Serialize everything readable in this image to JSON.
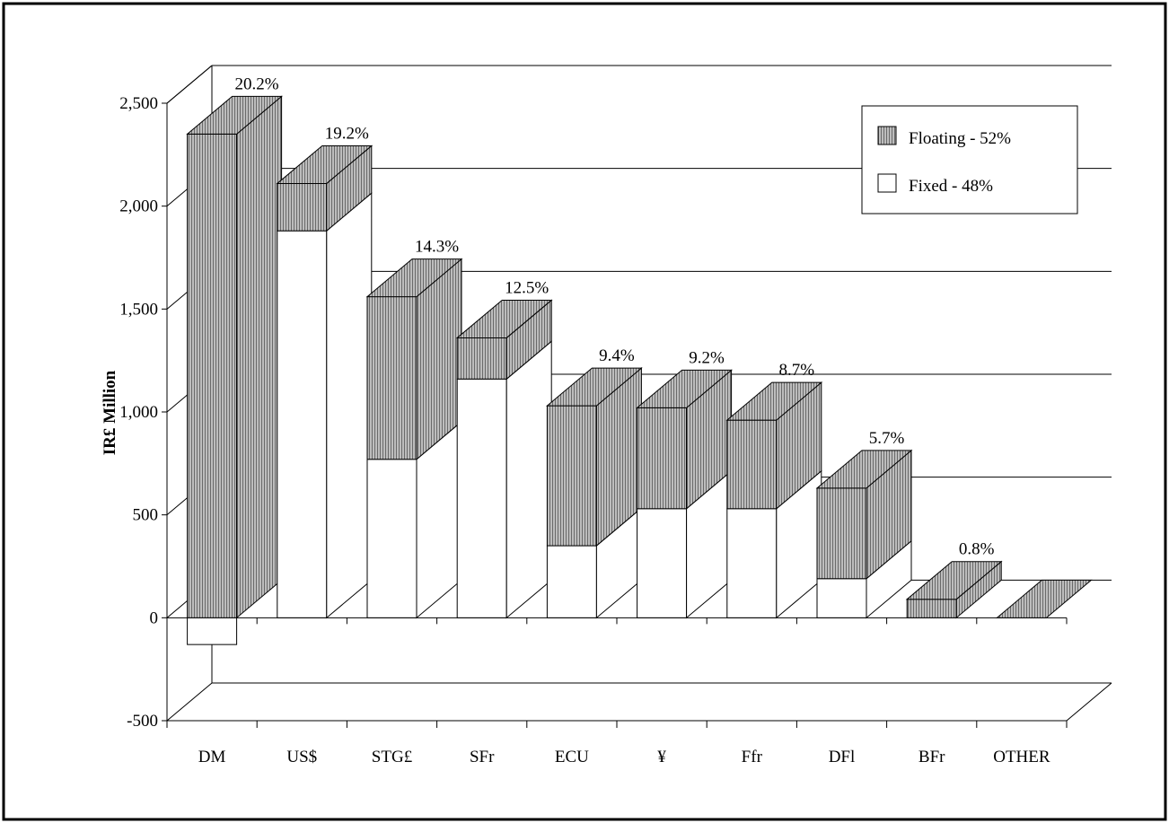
{
  "chart_data": {
    "type": "bar",
    "subtype": "stacked-3d",
    "ylabel": "IR£ Million",
    "xlabel": "",
    "title": "",
    "ylim": [
      -500,
      2500
    ],
    "yticks": [
      -500,
      0,
      500,
      1000,
      1500,
      2000,
      2500
    ],
    "ytick_labels": [
      "-500",
      "0",
      "500",
      "1,000",
      "1,500",
      "2,000",
      "2,500"
    ],
    "grid": true,
    "legend_position": "top-right",
    "categories": [
      "DM",
      "US$",
      "STG£",
      "SFr",
      "ECU",
      "¥",
      "Ffr",
      "DFl",
      "BFr",
      "OTHER"
    ],
    "series": [
      {
        "name": "Fixed - 48%",
        "values": [
          -130,
          1880,
          770,
          1160,
          350,
          530,
          530,
          190,
          0,
          0
        ],
        "color": "#ffffff"
      },
      {
        "name": "Floating - 52%",
        "values": [
          2350,
          230,
          790,
          200,
          680,
          490,
          430,
          440,
          90,
          0
        ],
        "color": "#a6a6a6"
      }
    ],
    "percent_labels": [
      "20.2%",
      "19.2%",
      "14.3%",
      "12.5%",
      "9.4%",
      "9.2%",
      "8.7%",
      "5.7%",
      "0.8%",
      ""
    ]
  }
}
